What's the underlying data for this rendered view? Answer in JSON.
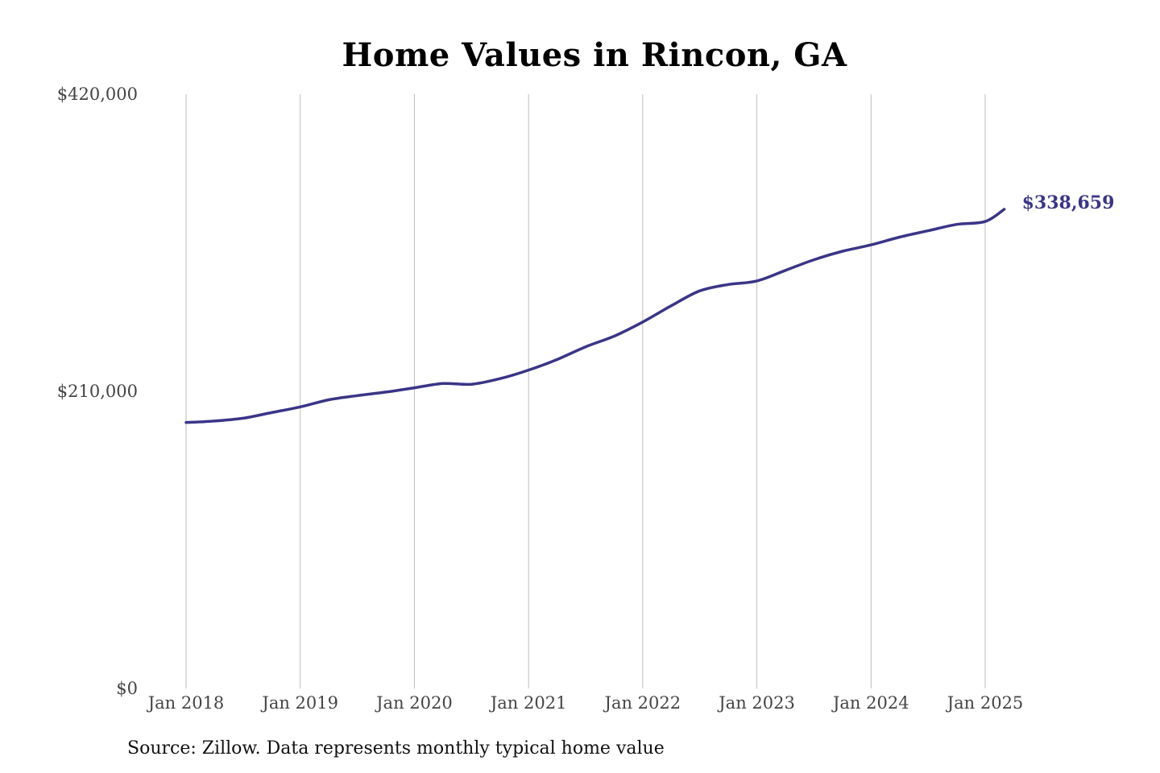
{
  "chart_data": {
    "type": "line",
    "title": "Home Values in Rincon, GA",
    "xlabel": "",
    "ylabel": "",
    "ylim": [
      0,
      420000
    ],
    "xlim": [
      "2018-01",
      "2025-03"
    ],
    "y_ticks": [
      0,
      210000,
      420000
    ],
    "y_tick_labels": [
      "$0",
      "$210,000",
      "$420,000"
    ],
    "x_ticks": [
      "2018-01",
      "2019-01",
      "2020-01",
      "2021-01",
      "2022-01",
      "2023-01",
      "2024-01",
      "2025-01"
    ],
    "x_tick_labels": [
      "Jan 2018",
      "Jan 2019",
      "Jan 2020",
      "Jan 2021",
      "Jan 2022",
      "Jan 2023",
      "Jan 2024",
      "Jan 2025"
    ],
    "grid": {
      "x": true,
      "y": false
    },
    "legend": "none",
    "series": [
      {
        "color": "#3a3587",
        "points": [
          {
            "x": "2018-01",
            "y": 188000
          },
          {
            "x": "2018-04",
            "y": 189000
          },
          {
            "x": "2018-07",
            "y": 191000
          },
          {
            "x": "2018-10",
            "y": 195000
          },
          {
            "x": "2019-01",
            "y": 199000
          },
          {
            "x": "2019-04",
            "y": 204000
          },
          {
            "x": "2019-07",
            "y": 207000
          },
          {
            "x": "2019-10",
            "y": 209500
          },
          {
            "x": "2020-01",
            "y": 212500
          },
          {
            "x": "2020-04",
            "y": 215500
          },
          {
            "x": "2020-07",
            "y": 215000
          },
          {
            "x": "2020-10",
            "y": 219000
          },
          {
            "x": "2021-01",
            "y": 225000
          },
          {
            "x": "2021-04",
            "y": 232500
          },
          {
            "x": "2021-07",
            "y": 241500
          },
          {
            "x": "2021-10",
            "y": 249000
          },
          {
            "x": "2022-01",
            "y": 259000
          },
          {
            "x": "2022-04",
            "y": 270500
          },
          {
            "x": "2022-07",
            "y": 281000
          },
          {
            "x": "2022-10",
            "y": 285500
          },
          {
            "x": "2023-01",
            "y": 288000
          },
          {
            "x": "2023-04",
            "y": 295500
          },
          {
            "x": "2023-07",
            "y": 303000
          },
          {
            "x": "2023-10",
            "y": 309000
          },
          {
            "x": "2024-01",
            "y": 313500
          },
          {
            "x": "2024-04",
            "y": 319000
          },
          {
            "x": "2024-07",
            "y": 323500
          },
          {
            "x": "2024-10",
            "y": 328000
          },
          {
            "x": "2025-01",
            "y": 330000
          },
          {
            "x": "2025-03",
            "y": 338659
          }
        ]
      }
    ],
    "end_label": "$338,659",
    "source_note": "Source: Zillow. Data represents monthly typical home value"
  }
}
